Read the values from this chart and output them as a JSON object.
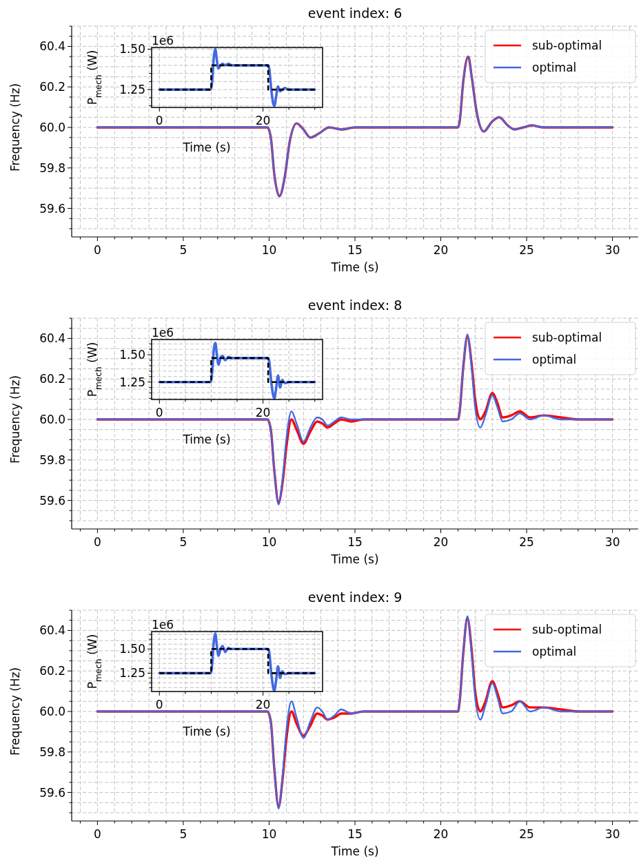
{
  "chart_data": [
    {
      "type": "line",
      "title": "event index: 6",
      "xlabel": "Time (s)",
      "ylabel": "Frequency (Hz)",
      "xlim": [
        -1.5,
        31.5
      ],
      "ylim": [
        59.5,
        60.5
      ],
      "grid": true,
      "legend": "top right",
      "xticks": [
        {
          "value": -1,
          "label": null
        },
        0,
        {
          "value": 1,
          "label": null
        },
        {
          "value": 2,
          "label": null
        },
        {
          "value": 3,
          "label": null
        },
        {
          "value": 4,
          "label": null
        },
        5,
        {
          "value": 6,
          "label": null
        },
        {
          "value": 7,
          "label": null
        },
        {
          "value": 8,
          "label": null
        },
        {
          "value": 9,
          "label": null
        },
        10,
        {
          "value": 11,
          "label": null
        },
        {
          "value": 12,
          "label": null
        },
        {
          "value": 13,
          "label": null
        },
        {
          "value": 14,
          "label": null
        },
        15,
        {
          "value": 16,
          "label": null
        },
        {
          "value": 17,
          "label": null
        },
        {
          "value": 18,
          "label": null
        },
        {
          "value": 19,
          "label": null
        },
        20,
        {
          "value": 21,
          "label": null
        },
        {
          "value": 22,
          "label": null
        },
        {
          "value": 23,
          "label": null
        },
        {
          "value": 24,
          "label": null
        },
        25,
        {
          "value": 26,
          "label": null
        },
        {
          "value": 27,
          "label": null
        },
        {
          "value": 28,
          "label": null
        },
        {
          "value": 29,
          "label": null
        },
        30,
        {
          "value": 31,
          "label": null
        }
      ],
      "yticks": [
        {
          "value": 59.5,
          "label": null
        },
        {
          "value": 59.55,
          "label": null
        },
        {
          "value": 59.6,
          "label": "59.6"
        },
        {
          "value": 59.65,
          "label": null
        },
        {
          "value": 59.7,
          "label": null
        },
        {
          "value": 59.75,
          "label": null
        },
        {
          "value": 59.8,
          "label": "59.8"
        },
        {
          "value": 59.85,
          "label": null
        },
        {
          "value": 59.9,
          "label": null
        },
        {
          "value": 59.95,
          "label": null
        },
        {
          "value": 60.0,
          "label": "60.0"
        },
        {
          "value": 60.05,
          "label": null
        },
        {
          "value": 60.1,
          "label": null
        },
        {
          "value": 60.15,
          "label": null
        },
        {
          "value": 60.2,
          "label": "60.2"
        },
        {
          "value": 60.25,
          "label": null
        },
        {
          "value": 60.3,
          "label": null
        },
        {
          "value": 60.35,
          "label": null
        },
        {
          "value": 60.4,
          "label": "60.4"
        },
        {
          "value": 60.45,
          "label": null
        },
        {
          "value": 60.5,
          "label": null
        }
      ],
      "series": [
        {
          "name": "sub-optimal",
          "color": "#ff0000",
          "x": [
            0,
            9.9,
            10.1,
            10.3,
            10.6,
            10.9,
            11.2,
            11.6,
            12,
            12.4,
            12.9,
            13.5,
            14.2,
            15,
            16,
            21,
            21.1,
            21.3,
            21.6,
            21.8,
            22.1,
            22.5,
            23,
            23.4,
            23.9,
            24.3,
            24.8,
            25.3,
            26,
            27,
            30
          ],
          "values": [
            60,
            60,
            59.95,
            59.77,
            59.66,
            59.75,
            59.93,
            60.02,
            59.99,
            59.95,
            59.97,
            60.0,
            59.99,
            60.0,
            60.0,
            60.0,
            60.03,
            60.22,
            60.35,
            60.25,
            60.07,
            59.98,
            60.03,
            60.05,
            60.01,
            59.99,
            60.0,
            60.01,
            60.0,
            60.0,
            60.0
          ]
        },
        {
          "name": "optimal",
          "color": "#4169e1",
          "x": [
            0,
            9.9,
            10.1,
            10.3,
            10.6,
            10.9,
            11.2,
            11.6,
            12,
            12.4,
            12.9,
            13.5,
            14.2,
            15,
            16,
            21,
            21.1,
            21.3,
            21.6,
            21.8,
            22.1,
            22.5,
            23,
            23.4,
            23.9,
            24.3,
            24.8,
            25.3,
            26,
            27,
            30
          ],
          "values": [
            60,
            60,
            59.95,
            59.77,
            59.66,
            59.75,
            59.93,
            60.02,
            59.99,
            59.95,
            59.97,
            60.0,
            59.99,
            60.0,
            60.0,
            60.0,
            60.03,
            60.22,
            60.35,
            60.25,
            60.07,
            59.98,
            60.03,
            60.05,
            60.01,
            59.99,
            60.0,
            60.01,
            60.0,
            60.0,
            60.0
          ]
        }
      ]
    },
    {
      "type": "line",
      "xlabel": "Time (s)",
      "ylabel": "P$_{mech}$ (W)",
      "annotations": [
        "1e6"
      ],
      "xlim": [
        -1.5,
        31.5
      ],
      "ylim": [
        1.14,
        1.51
      ],
      "grid": true,
      "xticks": [
        0,
        {
          "value": 5,
          "label": null
        },
        {
          "value": 10,
          "label": null
        },
        {
          "value": 15,
          "label": null
        },
        20,
        {
          "value": 25,
          "label": null
        },
        {
          "value": 30,
          "label": null
        }
      ],
      "yticks": [
        {
          "value": 1.15,
          "label": null
        },
        {
          "value": 1.2,
          "label": null
        },
        {
          "value": 1.25,
          "label": "1.25"
        },
        {
          "value": 1.3,
          "label": null
        },
        {
          "value": 1.35,
          "label": null
        },
        {
          "value": 1.4,
          "label": null
        },
        {
          "value": 1.45,
          "label": null
        },
        {
          "value": 1.5,
          "label": "1.50"
        }
      ],
      "series": [
        {
          "color": "#4169e1",
          "x": [
            0,
            9.9,
            10.2,
            10.5,
            10.8,
            11.1,
            11.4,
            11.8,
            12.2,
            12.7,
            13.3,
            14,
            15,
            21,
            21.2,
            21.6,
            22.0,
            22.2,
            22.5,
            22.9,
            23.3,
            23.7,
            24.2,
            25,
            30
          ],
          "values": [
            1.25,
            1.25,
            1.3,
            1.45,
            1.5,
            1.43,
            1.38,
            1.4,
            1.41,
            1.4,
            1.41,
            1.4,
            1.4,
            1.4,
            1.38,
            1.25,
            1.16,
            1.15,
            1.2,
            1.27,
            1.24,
            1.25,
            1.26,
            1.25,
            1.25
          ]
        },
        {
          "type": "step",
          "color": "#000000",
          "line_style": "dashed",
          "x": [
            0,
            10,
            21,
            30
          ],
          "values": [
            1.25,
            1.4,
            1.25,
            1.25
          ]
        }
      ]
    },
    {
      "type": "line",
      "title": "event index: 8",
      "xlabel": "Time (s)",
      "ylabel": "Frequency (Hz)",
      "xlim": [
        -1.5,
        31.5
      ],
      "ylim": [
        59.5,
        60.5
      ],
      "grid": true,
      "legend": "top right",
      "xticks": [
        {
          "value": -1,
          "label": null
        },
        0,
        {
          "value": 1,
          "label": null
        },
        {
          "value": 2,
          "label": null
        },
        {
          "value": 3,
          "label": null
        },
        {
          "value": 4,
          "label": null
        },
        5,
        {
          "value": 6,
          "label": null
        },
        {
          "value": 7,
          "label": null
        },
        {
          "value": 8,
          "label": null
        },
        {
          "value": 9,
          "label": null
        },
        10,
        {
          "value": 11,
          "label": null
        },
        {
          "value": 12,
          "label": null
        },
        {
          "value": 13,
          "label": null
        },
        {
          "value": 14,
          "label": null
        },
        15,
        {
          "value": 16,
          "label": null
        },
        {
          "value": 17,
          "label": null
        },
        {
          "value": 18,
          "label": null
        },
        {
          "value": 19,
          "label": null
        },
        20,
        {
          "value": 21,
          "label": null
        },
        {
          "value": 22,
          "label": null
        },
        {
          "value": 23,
          "label": null
        },
        {
          "value": 24,
          "label": null
        },
        25,
        {
          "value": 26,
          "label": null
        },
        {
          "value": 27,
          "label": null
        },
        {
          "value": 28,
          "label": null
        },
        {
          "value": 29,
          "label": null
        },
        30,
        {
          "value": 31,
          "label": null
        }
      ],
      "yticks": [
        {
          "value": 59.5,
          "label": null
        },
        {
          "value": 59.55,
          "label": null
        },
        {
          "value": 59.6,
          "label": "59.6"
        },
        {
          "value": 59.65,
          "label": null
        },
        {
          "value": 59.7,
          "label": null
        },
        {
          "value": 59.75,
          "label": null
        },
        {
          "value": 59.8,
          "label": "59.8"
        },
        {
          "value": 59.85,
          "label": null
        },
        {
          "value": 59.9,
          "label": null
        },
        {
          "value": 59.95,
          "label": null
        },
        {
          "value": 60.0,
          "label": "60.0"
        },
        {
          "value": 60.05,
          "label": null
        },
        {
          "value": 60.1,
          "label": null
        },
        {
          "value": 60.15,
          "label": null
        },
        {
          "value": 60.2,
          "label": "60.2"
        },
        {
          "value": 60.25,
          "label": null
        },
        {
          "value": 60.3,
          "label": null
        },
        {
          "value": 60.35,
          "label": null
        },
        {
          "value": 60.4,
          "label": "60.4"
        },
        {
          "value": 60.45,
          "label": null
        },
        {
          "value": 60.5,
          "label": null
        }
      ],
      "series": [
        {
          "name": "sub-optimal",
          "color": "#ff0000",
          "x": [
            0,
            9.9,
            10.1,
            10.3,
            10.55,
            10.8,
            11.0,
            11.3,
            11.6,
            12.0,
            12.4,
            12.8,
            13.1,
            13.4,
            13.8,
            14.2,
            14.8,
            15.5,
            16.5,
            21,
            21.1,
            21.3,
            21.55,
            21.8,
            22.0,
            22.3,
            22.6,
            23.0,
            23.3,
            23.6,
            24.1,
            24.6,
            25.2,
            26,
            27,
            28,
            30
          ],
          "values": [
            60,
            60,
            59.95,
            59.75,
            59.59,
            59.7,
            59.86,
            60.0,
            59.95,
            59.88,
            59.94,
            59.99,
            59.98,
            59.96,
            59.98,
            60.0,
            59.99,
            60.0,
            60.0,
            60.0,
            60.04,
            60.25,
            60.41,
            60.27,
            60.1,
            60.0,
            60.04,
            60.13,
            60.08,
            60.01,
            60.02,
            60.04,
            60.01,
            60.02,
            60.01,
            60.0,
            60.0
          ]
        },
        {
          "name": "optimal",
          "color": "#4169e1",
          "x": [
            0,
            9.9,
            10.1,
            10.3,
            10.55,
            10.8,
            11.0,
            11.3,
            11.6,
            12.0,
            12.4,
            12.8,
            13.1,
            13.4,
            13.8,
            14.2,
            14.8,
            15.5,
            16.5,
            21,
            21.1,
            21.3,
            21.55,
            21.8,
            22.0,
            22.3,
            22.6,
            23.0,
            23.3,
            23.6,
            24.1,
            24.6,
            25.2,
            26,
            27,
            28,
            30
          ],
          "values": [
            60,
            60,
            59.95,
            59.75,
            59.58,
            59.72,
            59.9,
            60.04,
            59.98,
            59.89,
            59.96,
            60.01,
            60.0,
            59.97,
            59.99,
            60.01,
            60.0,
            60.0,
            60.0,
            60.0,
            60.04,
            60.25,
            60.42,
            60.25,
            60.06,
            59.96,
            60.02,
            60.12,
            60.06,
            59.99,
            60.0,
            60.03,
            60.0,
            60.02,
            60.0,
            60.0,
            60.0
          ]
        }
      ]
    },
    {
      "type": "line",
      "xlabel": "Time (s)",
      "ylabel": "P$_{mech}$ (W)",
      "annotations": [
        "1e6"
      ],
      "xlim": [
        -1.5,
        31.5
      ],
      "ylim": [
        1.09,
        1.64
      ],
      "grid": true,
      "xticks": [
        0,
        {
          "value": 5,
          "label": null
        },
        {
          "value": 10,
          "label": null
        },
        {
          "value": 15,
          "label": null
        },
        20,
        {
          "value": 25,
          "label": null
        },
        {
          "value": 30,
          "label": null
        }
      ],
      "yticks": [
        {
          "value": 1.1,
          "label": null
        },
        {
          "value": 1.15,
          "label": null
        },
        {
          "value": 1.2,
          "label": null
        },
        {
          "value": 1.25,
          "label": "1.25"
        },
        {
          "value": 1.3,
          "label": null
        },
        {
          "value": 1.35,
          "label": null
        },
        {
          "value": 1.4,
          "label": null
        },
        {
          "value": 1.45,
          "label": null
        },
        {
          "value": 1.5,
          "label": "1.50"
        },
        {
          "value": 1.55,
          "label": null
        },
        {
          "value": 1.6,
          "label": null
        }
      ],
      "series": [
        {
          "color": "#4169e1",
          "x": [
            0,
            9.9,
            10.2,
            10.5,
            10.8,
            11.1,
            11.4,
            11.8,
            12.2,
            12.7,
            13.3,
            14,
            15,
            21,
            21.2,
            21.6,
            22.0,
            22.2,
            22.5,
            22.9,
            23.3,
            23.7,
            24.2,
            25,
            30
          ],
          "values": [
            1.25,
            1.25,
            1.35,
            1.55,
            1.61,
            1.5,
            1.41,
            1.47,
            1.49,
            1.45,
            1.48,
            1.47,
            1.47,
            1.47,
            1.44,
            1.25,
            1.12,
            1.1,
            1.18,
            1.31,
            1.2,
            1.27,
            1.24,
            1.25,
            1.25
          ]
        },
        {
          "type": "step",
          "color": "#000000",
          "line_style": "dashed",
          "x": [
            0,
            10,
            21,
            30
          ],
          "values": [
            1.25,
            1.47,
            1.25,
            1.25
          ]
        }
      ]
    },
    {
      "type": "line",
      "title": "event index: 9",
      "xlabel": "Time (s)",
      "ylabel": "Frequency (Hz)",
      "xlim": [
        -1.5,
        31.5
      ],
      "ylim": [
        59.5,
        60.5
      ],
      "grid": true,
      "legend": "top right",
      "xticks": [
        {
          "value": -1,
          "label": null
        },
        0,
        {
          "value": 1,
          "label": null
        },
        {
          "value": 2,
          "label": null
        },
        {
          "value": 3,
          "label": null
        },
        {
          "value": 4,
          "label": null
        },
        5,
        {
          "value": 6,
          "label": null
        },
        {
          "value": 7,
          "label": null
        },
        {
          "value": 8,
          "label": null
        },
        {
          "value": 9,
          "label": null
        },
        10,
        {
          "value": 11,
          "label": null
        },
        {
          "value": 12,
          "label": null
        },
        {
          "value": 13,
          "label": null
        },
        {
          "value": 14,
          "label": null
        },
        15,
        {
          "value": 16,
          "label": null
        },
        {
          "value": 17,
          "label": null
        },
        {
          "value": 18,
          "label": null
        },
        {
          "value": 19,
          "label": null
        },
        20,
        {
          "value": 21,
          "label": null
        },
        {
          "value": 22,
          "label": null
        },
        {
          "value": 23,
          "label": null
        },
        {
          "value": 24,
          "label": null
        },
        25,
        {
          "value": 26,
          "label": null
        },
        {
          "value": 27,
          "label": null
        },
        {
          "value": 28,
          "label": null
        },
        {
          "value": 29,
          "label": null
        },
        30,
        {
          "value": 31,
          "label": null
        }
      ],
      "yticks": [
        {
          "value": 59.5,
          "label": null
        },
        {
          "value": 59.55,
          "label": null
        },
        {
          "value": 59.6,
          "label": "59.6"
        },
        {
          "value": 59.65,
          "label": null
        },
        {
          "value": 59.7,
          "label": null
        },
        {
          "value": 59.75,
          "label": null
        },
        {
          "value": 59.8,
          "label": "59.8"
        },
        {
          "value": 59.85,
          "label": null
        },
        {
          "value": 59.9,
          "label": null
        },
        {
          "value": 59.95,
          "label": null
        },
        {
          "value": 60.0,
          "label": "60.0"
        },
        {
          "value": 60.05,
          "label": null
        },
        {
          "value": 60.1,
          "label": null
        },
        {
          "value": 60.15,
          "label": null
        },
        {
          "value": 60.2,
          "label": "60.2"
        },
        {
          "value": 60.25,
          "label": null
        },
        {
          "value": 60.3,
          "label": null
        },
        {
          "value": 60.35,
          "label": null
        },
        {
          "value": 60.4,
          "label": "60.4"
        },
        {
          "value": 60.45,
          "label": null
        },
        {
          "value": 60.5,
          "label": null
        }
      ],
      "series": [
        {
          "name": "sub-optimal",
          "color": "#ff0000",
          "x": [
            0,
            9.9,
            10.1,
            10.3,
            10.55,
            10.8,
            11.0,
            11.3,
            11.6,
            12.0,
            12.4,
            12.8,
            13.1,
            13.4,
            13.8,
            14.2,
            14.8,
            15.5,
            16.5,
            21,
            21.1,
            21.3,
            21.55,
            21.8,
            22.0,
            22.3,
            22.6,
            23.0,
            23.3,
            23.6,
            24.1,
            24.6,
            25.2,
            26,
            27,
            28,
            30
          ],
          "values": [
            60,
            60,
            59.95,
            59.72,
            59.53,
            59.68,
            59.86,
            60.0,
            59.94,
            59.88,
            59.93,
            59.99,
            59.98,
            59.96,
            59.97,
            59.99,
            59.99,
            60.0,
            60.0,
            60.0,
            60.05,
            60.28,
            60.46,
            60.3,
            60.1,
            60.0,
            60.05,
            60.15,
            60.09,
            60.02,
            60.03,
            60.05,
            60.02,
            60.02,
            60.01,
            60.0,
            60.0
          ]
        },
        {
          "name": "optimal",
          "color": "#4169e1",
          "x": [
            0,
            9.9,
            10.1,
            10.3,
            10.55,
            10.8,
            11.0,
            11.3,
            11.6,
            12.0,
            12.4,
            12.8,
            13.1,
            13.4,
            13.8,
            14.2,
            14.8,
            15.5,
            16.5,
            21,
            21.1,
            21.3,
            21.55,
            21.8,
            22.0,
            22.3,
            22.6,
            23.0,
            23.3,
            23.6,
            24.1,
            24.6,
            25.2,
            26,
            27,
            28,
            30
          ],
          "values": [
            60,
            60,
            59.95,
            59.72,
            59.52,
            59.7,
            59.9,
            60.05,
            59.97,
            59.87,
            59.95,
            60.02,
            60.0,
            59.96,
            59.98,
            60.01,
            59.99,
            60.0,
            60.0,
            60.0,
            60.05,
            60.28,
            60.47,
            60.28,
            60.07,
            59.96,
            60.03,
            60.14,
            60.07,
            59.99,
            60.0,
            60.05,
            60.0,
            60.02,
            60.0,
            60.0,
            60.0
          ]
        }
      ]
    },
    {
      "type": "line",
      "xlabel": "Time (s)",
      "ylabel": "P$_{mech}$ (W)",
      "annotations": [
        "1e6"
      ],
      "xlim": [
        -1.5,
        31.5
      ],
      "ylim": [
        1.06,
        1.68
      ],
      "grid": true,
      "xticks": [
        0,
        {
          "value": 5,
          "label": null
        },
        {
          "value": 10,
          "label": null
        },
        {
          "value": 15,
          "label": null
        },
        20,
        {
          "value": 25,
          "label": null
        },
        {
          "value": 30,
          "label": null
        }
      ],
      "yticks": [
        {
          "value": 1.1,
          "label": null
        },
        {
          "value": 1.15,
          "label": null
        },
        {
          "value": 1.2,
          "label": null
        },
        {
          "value": 1.25,
          "label": "1.25"
        },
        {
          "value": 1.3,
          "label": null
        },
        {
          "value": 1.35,
          "label": null
        },
        {
          "value": 1.4,
          "label": null
        },
        {
          "value": 1.45,
          "label": null
        },
        {
          "value": 1.5,
          "label": "1.50"
        },
        {
          "value": 1.55,
          "label": null
        },
        {
          "value": 1.6,
          "label": null
        },
        {
          "value": 1.65,
          "label": null
        }
      ],
      "series": [
        {
          "color": "#4169e1",
          "x": [
            0,
            9.9,
            10.2,
            10.5,
            10.8,
            11.1,
            11.4,
            11.8,
            12.2,
            12.7,
            13.3,
            14,
            15,
            21,
            21.2,
            21.6,
            22.0,
            22.2,
            22.5,
            22.9,
            23.3,
            23.7,
            24.2,
            25,
            30
          ],
          "values": [
            1.25,
            1.25,
            1.35,
            1.58,
            1.66,
            1.53,
            1.43,
            1.5,
            1.53,
            1.47,
            1.51,
            1.5,
            1.5,
            1.5,
            1.47,
            1.25,
            1.09,
            1.07,
            1.16,
            1.32,
            1.2,
            1.27,
            1.24,
            1.25,
            1.25
          ]
        },
        {
          "type": "step",
          "color": "#000000",
          "line_style": "dashed",
          "x": [
            0,
            10,
            21,
            30
          ],
          "values": [
            1.25,
            1.5,
            1.25,
            1.25
          ]
        }
      ]
    }
  ]
}
